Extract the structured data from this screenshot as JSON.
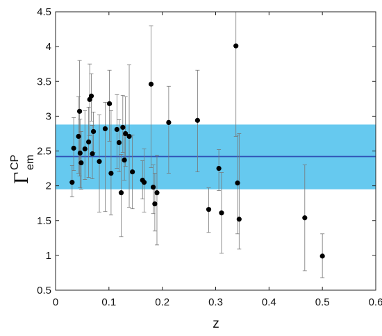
{
  "chart_data": {
    "type": "scatter",
    "xlabel": "z",
    "ylabel_main": "Γ",
    "ylabel_sub": "em",
    "ylabel_sup": "CP",
    "xlim": [
      0,
      0.6
    ],
    "ylim": [
      0.5,
      4.5
    ],
    "xticks": [
      0,
      0.1,
      0.2,
      0.3,
      0.4,
      0.5,
      0.6
    ],
    "xtick_labels": [
      "0",
      "0.1",
      "0.2",
      "0.3",
      "0.4",
      "0.5",
      "0.6"
    ],
    "yticks": [
      0.5,
      1,
      1.5,
      2,
      2.5,
      3,
      3.5,
      4,
      4.5
    ],
    "ytick_labels": [
      "0.5",
      "1",
      "1.5",
      "2",
      "2.5",
      "3",
      "3.5",
      "4",
      "4.5"
    ],
    "grid": false,
    "mean_line": 2.42,
    "band": [
      1.95,
      2.88
    ],
    "colors": {
      "band": "#66c9ef",
      "mean": "#2f51b6",
      "points": "#000000",
      "errorbars": "#777777"
    },
    "points": [
      {
        "x": 0.031,
        "y": 2.05,
        "lo": 1.84,
        "hi": 2.29
      },
      {
        "x": 0.034,
        "y": 2.54,
        "lo": 2.22,
        "hi": 2.98
      },
      {
        "x": 0.043,
        "y": 2.71,
        "lo": 2.18,
        "hi": 3.28
      },
      {
        "x": 0.045,
        "y": 3.07,
        "lo": 2.14,
        "hi": 3.8
      },
      {
        "x": 0.046,
        "y": 2.47,
        "lo": 1.97,
        "hi": 2.96
      },
      {
        "x": 0.048,
        "y": 2.33,
        "lo": 1.95,
        "hi": 2.78
      },
      {
        "x": 0.055,
        "y": 2.53,
        "lo": 2.09,
        "hi": 3.08
      },
      {
        "x": 0.062,
        "y": 2.63,
        "lo": 2.12,
        "hi": 3.13
      },
      {
        "x": 0.064,
        "y": 3.24,
        "lo": 2.72,
        "hi": 3.75
      },
      {
        "x": 0.067,
        "y": 3.29,
        "lo": 2.93,
        "hi": 3.61
      },
      {
        "x": 0.069,
        "y": 2.46,
        "lo": 2.1,
        "hi": 2.87
      },
      {
        "x": 0.071,
        "y": 2.78,
        "lo": 2.48,
        "hi": 3.06
      },
      {
        "x": 0.082,
        "y": 2.35,
        "lo": 1.62,
        "hi": 3.02
      },
      {
        "x": 0.093,
        "y": 2.82,
        "lo": 1.63,
        "hi": 3.2
      },
      {
        "x": 0.101,
        "y": 3.18,
        "lo": 2.64,
        "hi": 3.66
      },
      {
        "x": 0.104,
        "y": 2.18,
        "lo": 1.58,
        "hi": 3.08
      },
      {
        "x": 0.115,
        "y": 2.81,
        "lo": 2.25,
        "hi": 3.31
      },
      {
        "x": 0.119,
        "y": 2.62,
        "lo": 2.2,
        "hi": 2.95
      },
      {
        "x": 0.123,
        "y": 1.9,
        "lo": 1.27,
        "hi": 2.45
      },
      {
        "x": 0.126,
        "y": 2.84,
        "lo": 2.48,
        "hi": 3.3
      },
      {
        "x": 0.129,
        "y": 2.37,
        "lo": 2.08,
        "hi": 2.72
      },
      {
        "x": 0.131,
        "y": 2.75,
        "lo": 2.28,
        "hi": 3.28
      },
      {
        "x": 0.138,
        "y": 2.71,
        "lo": 1.69,
        "hi": 3.74
      },
      {
        "x": 0.144,
        "y": 2.2,
        "lo": 1.67,
        "hi": 2.73
      },
      {
        "x": 0.163,
        "y": 2.08,
        "lo": 1.81,
        "hi": 2.36
      },
      {
        "x": 0.166,
        "y": 2.05,
        "lo": 1.62,
        "hi": 2.53
      },
      {
        "x": 0.179,
        "y": 3.46,
        "lo": 2.26,
        "hi": 4.3
      },
      {
        "x": 0.183,
        "y": 1.98,
        "lo": 1.6,
        "hi": 2.3
      },
      {
        "x": 0.186,
        "y": 1.74,
        "lo": 1.35,
        "hi": 2.18
      },
      {
        "x": 0.19,
        "y": 1.9,
        "lo": 1.15,
        "hi": 2.44
      },
      {
        "x": 0.212,
        "y": 2.91,
        "lo": 2.18,
        "hi": 3.43
      },
      {
        "x": 0.266,
        "y": 2.94,
        "lo": 2.2,
        "hi": 3.66
      },
      {
        "x": 0.287,
        "y": 1.66,
        "lo": 1.33,
        "hi": 1.97
      },
      {
        "x": 0.306,
        "y": 2.25,
        "lo": 1.93,
        "hi": 2.52
      },
      {
        "x": 0.311,
        "y": 1.61,
        "lo": 1.03,
        "hi": 2.19
      },
      {
        "x": 0.338,
        "y": 4.01,
        "lo": 2.71,
        "hi": 4.5
      },
      {
        "x": 0.341,
        "y": 2.04,
        "lo": 1.31,
        "hi": 2.73
      },
      {
        "x": 0.344,
        "y": 1.52,
        "lo": 1.09,
        "hi": 2.75
      },
      {
        "x": 0.467,
        "y": 1.54,
        "lo": 0.78,
        "hi": 2.3
      },
      {
        "x": 0.5,
        "y": 0.99,
        "lo": 0.68,
        "hi": 1.31
      }
    ]
  }
}
